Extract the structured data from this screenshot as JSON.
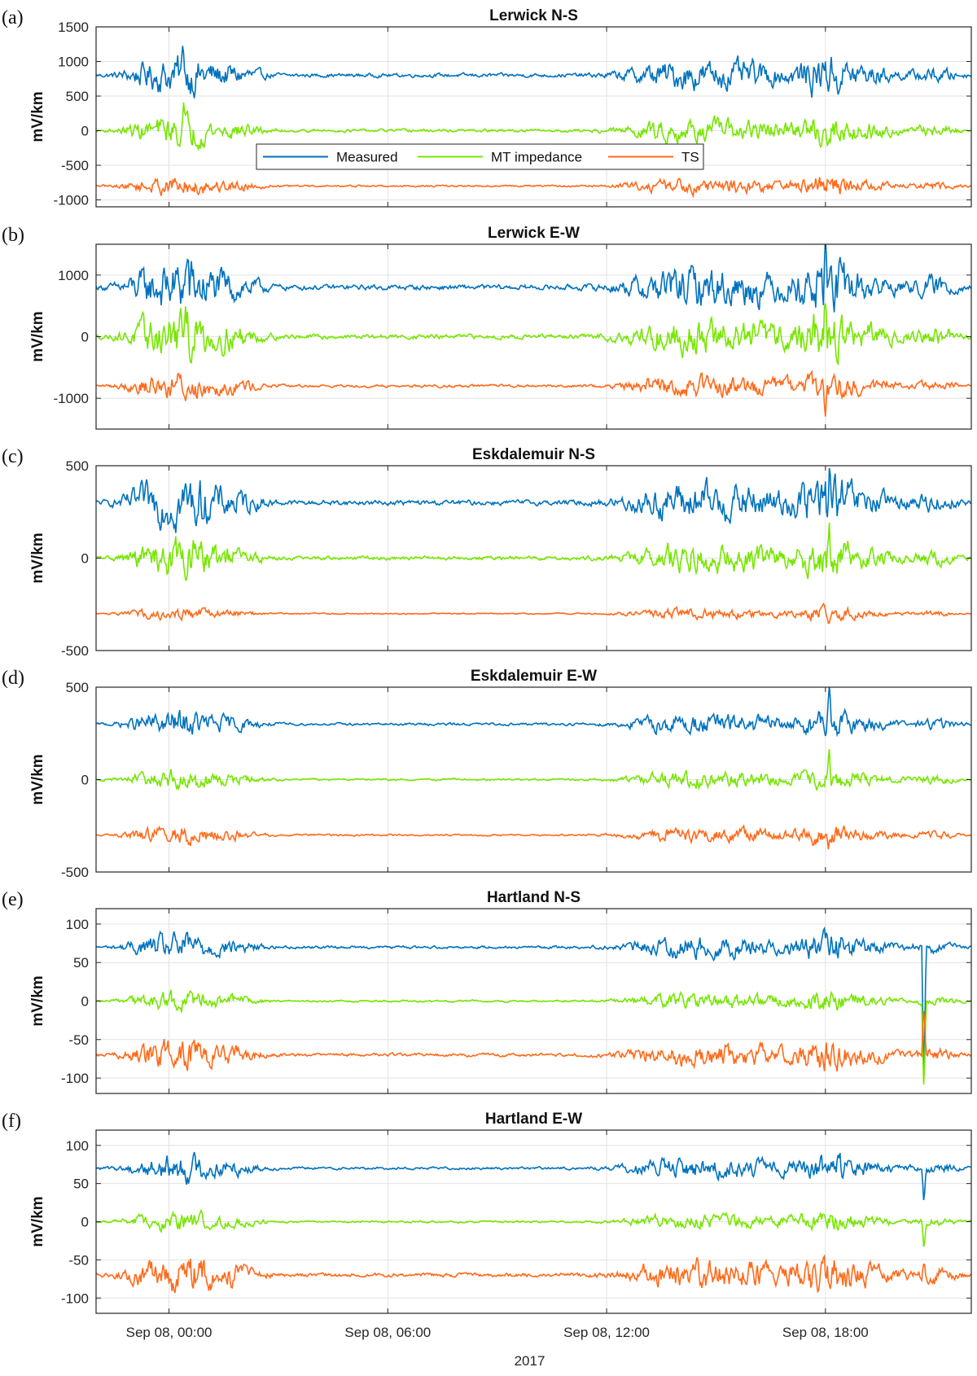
{
  "figure": {
    "xlabel": "2017",
    "x_ticks": [
      "Sep 08, 00:00",
      "Sep 08, 06:00",
      "Sep 08, 12:00",
      "Sep 08, 18:00"
    ],
    "x_tick_hours": [
      0,
      6,
      12,
      18
    ],
    "x_range_hours": [
      -2,
      22
    ],
    "ylabel": "mV/km",
    "legend": {
      "items": [
        "Measured",
        "MT impedance",
        "TS"
      ],
      "colors": [
        "#0072BD",
        "#77E600",
        "#FF6A1A"
      ],
      "placement": "inside panel (a), center-left"
    }
  },
  "chart_data": [
    {
      "type": "line",
      "letter": "(a)",
      "title": "Lerwick N-S",
      "ylim": [
        -1100,
        1500
      ],
      "yticks": [
        -1000,
        -500,
        0,
        500,
        1000,
        1500
      ],
      "offsets": [
        800,
        0,
        -800
      ],
      "amp": [
        110,
        85,
        55
      ],
      "spikes": [
        [
          0.4,
          380
        ],
        [
          18.0,
          320
        ]
      ],
      "grid": true
    },
    {
      "type": "line",
      "letter": "(b)",
      "title": "Lerwick E-W",
      "ylim": [
        -1500,
        1500
      ],
      "yticks": [
        -1000,
        0,
        1000
      ],
      "offsets": [
        800,
        0,
        -800
      ],
      "amp": [
        170,
        150,
        90
      ],
      "spikes": [
        [
          0.5,
          500
        ],
        [
          18.0,
          700
        ]
      ],
      "grid": true
    },
    {
      "type": "line",
      "letter": "(c)",
      "title": "Eskdalemuir N-S",
      "ylim": [
        -500,
        500
      ],
      "yticks": [
        -500,
        0,
        500
      ],
      "offsets": [
        300,
        0,
        -300
      ],
      "amp": [
        55,
        40,
        14
      ],
      "spikes": [
        [
          18.1,
          230
        ]
      ],
      "grid": true
    },
    {
      "type": "line",
      "letter": "(d)",
      "title": "Eskdalemuir E-W",
      "ylim": [
        -500,
        500
      ],
      "yticks": [
        -500,
        0,
        500
      ],
      "offsets": [
        300,
        0,
        -300
      ],
      "amp": [
        28,
        22,
        20
      ],
      "spikes": [
        [
          18.1,
          150
        ]
      ],
      "grid": true
    },
    {
      "type": "line",
      "letter": "(e)",
      "title": "Hartland N-S",
      "ylim": [
        -120,
        120
      ],
      "yticks": [
        -100,
        -50,
        0,
        50,
        100
      ],
      "offsets": [
        70,
        0,
        -70
      ],
      "amp": [
        7,
        5,
        8
      ],
      "spikes": [
        [
          20.7,
          -180
        ]
      ],
      "grid": true
    },
    {
      "type": "line",
      "letter": "(f)",
      "title": "Hartland E-W",
      "ylim": [
        -120,
        120
      ],
      "yticks": [
        -100,
        -50,
        0,
        50,
        100
      ],
      "offsets": [
        70,
        0,
        -70
      ],
      "amp": [
        7,
        5,
        10
      ],
      "spikes": [
        [
          20.7,
          -50
        ]
      ],
      "grid": true
    }
  ]
}
